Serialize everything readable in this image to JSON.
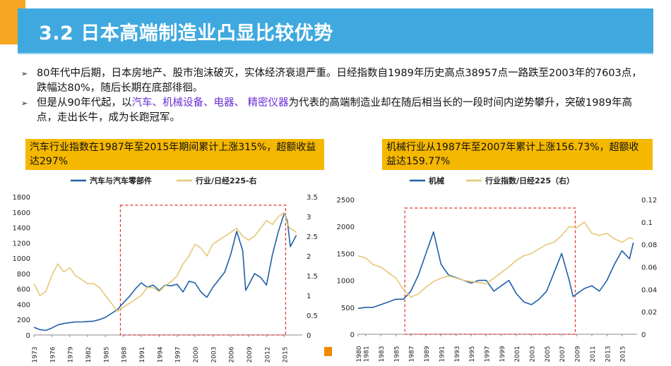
{
  "title": "3.2 日本高端制造业凸显比较优势",
  "bullets": [
    {
      "mark": "➢",
      "text": "80年代中后期，日本房地产、股市泡沫破灭，实体经济衰退严重。日经指数自1989年历史高点38957点一路跌至2003年的7603点，跌幅达80%，随后长期在底部徘徊。"
    },
    {
      "mark": "➢",
      "pre": "但是从90年代起，以",
      "hl1": "汽车、机械设备、电器、 精密仪器",
      "post": "为代表的高端制造业却在随后相当长的一段时间内逆势攀升，突破1989年高点，走出长牛，成为长跑冠军。"
    }
  ],
  "notes": {
    "left": "汽车行业指数在1987年至2015年期间累计上涨315%，超额收益达297%",
    "right": "机械行业从1987年至2007年累计上涨156.73%，超额收益达159.77%"
  },
  "colors": {
    "series1": "#1f5fa8",
    "series2": "#e4c877",
    "box": "#e03030",
    "title_bar": "#3fa9df",
    "accent": "#f5a623"
  },
  "chart_data": [
    {
      "type": "line",
      "legend": [
        "汽车与汽车零部件",
        "行业/日经225-右"
      ],
      "x_tick_labels": [
        "1973",
        "1976",
        "1979",
        "1982",
        "1985",
        "1988",
        "1991",
        "1994",
        "1997",
        "2000",
        "2003",
        "2006",
        "2009",
        "2012",
        "2015"
      ],
      "xlim": [
        1973,
        2018
      ],
      "ylim_left": [
        0,
        1800
      ],
      "ylim_right": [
        0,
        3.5
      ],
      "yticks_left": [
        "0",
        "200",
        "400",
        "600",
        "800",
        "1000",
        "1200",
        "1400",
        "1600",
        "1800"
      ],
      "yticks_right": [
        "0",
        "0.5",
        "1",
        "1.5",
        "2",
        "2.5",
        "3",
        "3.5"
      ],
      "highlight_x": [
        1987.5,
        2015.2
      ],
      "series": [
        {
          "name": "汽车与汽车零部件",
          "axis": "left",
          "x": [
            1973,
            1974,
            1975,
            1976,
            1977,
            1978,
            1979,
            1980,
            1981,
            1982,
            1983,
            1984,
            1985,
            1986,
            1987,
            1988,
            1989,
            1990,
            1991,
            1992,
            1993,
            1994,
            1995,
            1996,
            1997,
            1998,
            1999,
            2000,
            2001,
            2002,
            2003,
            2004,
            2005,
            2006,
            2007,
            2008,
            2008.5,
            2009,
            2010,
            2011,
            2012,
            2013,
            2014,
            2015,
            2015.5,
            2016,
            2017
          ],
          "y": [
            100,
            70,
            60,
            90,
            130,
            150,
            160,
            170,
            170,
            175,
            180,
            200,
            230,
            280,
            330,
            420,
            500,
            600,
            680,
            620,
            650,
            580,
            650,
            640,
            660,
            560,
            700,
            680,
            560,
            490,
            620,
            720,
            820,
            1050,
            1350,
            1100,
            580,
            650,
            800,
            750,
            650,
            1050,
            1350,
            1590,
            1480,
            1150,
            1300
          ]
        },
        {
          "name": "行业/日经225-右",
          "axis": "right",
          "x": [
            1973,
            1974,
            1975,
            1976,
            1977,
            1978,
            1979,
            1980,
            1981,
            1982,
            1983,
            1984,
            1985,
            1986,
            1987,
            1988,
            1989,
            1990,
            1991,
            1992,
            1993,
            1994,
            1995,
            1996,
            1997,
            1998,
            1999,
            2000,
            2001,
            2002,
            2003,
            2004,
            2005,
            2006,
            2007,
            2008,
            2009,
            2010,
            2011,
            2012,
            2013,
            2014,
            2015,
            2015.5,
            2016,
            2017
          ],
          "y": [
            1.3,
            1.0,
            1.1,
            1.5,
            1.8,
            1.6,
            1.7,
            1.5,
            1.4,
            1.3,
            1.3,
            1.2,
            1.0,
            0.8,
            0.6,
            0.7,
            0.8,
            0.9,
            1.0,
            1.2,
            1.2,
            1.1,
            1.25,
            1.35,
            1.5,
            1.8,
            2.0,
            2.3,
            2.2,
            2.0,
            2.3,
            2.4,
            2.5,
            2.6,
            2.7,
            2.5,
            2.4,
            2.5,
            2.7,
            2.9,
            2.8,
            3.0,
            3.1,
            2.8,
            2.7,
            2.6
          ]
        }
      ]
    },
    {
      "type": "line",
      "legend": [
        "机械",
        "行业指数/日经225（右）"
      ],
      "x_tick_labels": [
        "1980",
        "1981",
        "1983",
        "1985",
        "1987",
        "1989",
        "1991",
        "1993",
        "1995",
        "1997",
        "1999",
        "2001",
        "2003",
        "2005",
        "2007",
        "2009",
        "2011",
        "2013",
        "2015"
      ],
      "x_tick_values": [
        1980,
        1981,
        1983,
        1985,
        1987,
        1989,
        1991,
        1993,
        1995,
        1997,
        1999,
        2001,
        2003,
        2005,
        2007,
        2009,
        2011,
        2013,
        2015
      ],
      "xlim": [
        1980,
        2017
      ],
      "ylim_left": [
        0,
        2500
      ],
      "ylim_right": [
        0,
        0.12
      ],
      "yticks_left": [
        "0",
        "500",
        "1000",
        "1500",
        "2000",
        "2500"
      ],
      "yticks_right": [
        "0",
        "0.02",
        "0.04",
        "0.06",
        "0.08",
        "0.1",
        "0.12"
      ],
      "highlight_x": [
        1986.2,
        2008.8
      ],
      "series": [
        {
          "name": "机械",
          "axis": "left",
          "x": [
            1980,
            1981,
            1982,
            1983,
            1984,
            1985,
            1986,
            1987,
            1988,
            1989,
            1990,
            1990.5,
            1991,
            1992,
            1993,
            1994,
            1995,
            1996,
            1997,
            1998,
            1999,
            2000,
            2001,
            2002,
            2003,
            2004,
            2005,
            2006,
            2007,
            2008,
            2008.5,
            2009,
            2010,
            2011,
            2012,
            2013,
            2014,
            2015,
            2016,
            2016.5
          ],
          "y": [
            480,
            500,
            500,
            550,
            600,
            650,
            650,
            800,
            1100,
            1500,
            1900,
            1600,
            1300,
            1100,
            1050,
            1000,
            950,
            1000,
            1000,
            800,
            900,
            1000,
            750,
            600,
            550,
            650,
            800,
            1150,
            1500,
            1000,
            700,
            750,
            850,
            900,
            800,
            1000,
            1300,
            1550,
            1400,
            1700
          ]
        },
        {
          "name": "行业指数/日经225（右）",
          "axis": "right",
          "x": [
            1980,
            1981,
            1982,
            1983,
            1984,
            1985,
            1986,
            1987,
            1988,
            1989,
            1990,
            1991,
            1992,
            1993,
            1994,
            1995,
            1996,
            1997,
            1998,
            1999,
            2000,
            2001,
            2002,
            2003,
            2004,
            2005,
            2006,
            2007,
            2008,
            2009,
            2010,
            2011,
            2012,
            2013,
            2014,
            2015,
            2016,
            2016.5
          ],
          "y": [
            0.07,
            0.068,
            0.062,
            0.06,
            0.055,
            0.05,
            0.04,
            0.033,
            0.036,
            0.042,
            0.047,
            0.05,
            0.052,
            0.05,
            0.048,
            0.047,
            0.046,
            0.045,
            0.05,
            0.055,
            0.06,
            0.066,
            0.07,
            0.072,
            0.076,
            0.08,
            0.082,
            0.088,
            0.096,
            0.095,
            0.1,
            0.09,
            0.088,
            0.09,
            0.085,
            0.082,
            0.086,
            0.085
          ]
        }
      ]
    }
  ]
}
